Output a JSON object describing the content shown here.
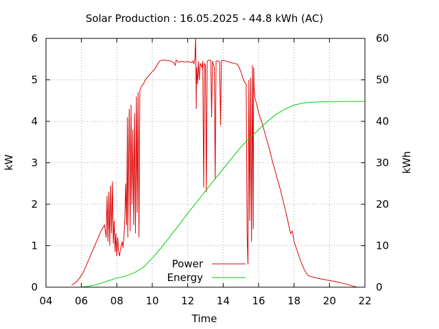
{
  "chart_data": {
    "type": "line",
    "title": "Solar Production : 16.05.2025 - 44.8 kWh (AC)",
    "xlabel": "Time",
    "ylabel": "kW",
    "y2label": "kWh",
    "xlim": [
      4,
      22
    ],
    "ylim": [
      0,
      6
    ],
    "y2lim": [
      0,
      60
    ],
    "x_ticks": [
      4,
      6,
      8,
      10,
      12,
      14,
      16,
      18,
      20,
      22
    ],
    "x_tick_labels": [
      "04",
      "06",
      "08",
      "10",
      "12",
      "14",
      "16",
      "18",
      "20",
      "22"
    ],
    "y_ticks": [
      0,
      1,
      2,
      3,
      4,
      5,
      6
    ],
    "y_tick_labels": [
      "0",
      "1",
      "2",
      "3",
      "4",
      "5",
      "6"
    ],
    "y2_ticks": [
      0,
      10,
      20,
      30,
      40,
      50,
      60
    ],
    "y2_tick_labels": [
      "0",
      "10",
      "20",
      "30",
      "40",
      "50",
      "60"
    ],
    "grid": true,
    "legend_position": "bottom-center",
    "series": [
      {
        "name": "Power",
        "color": "#dd0000",
        "axis": "left",
        "points": [
          [
            5.45,
            0.05
          ],
          [
            5.7,
            0.12
          ],
          [
            5.9,
            0.22
          ],
          [
            6.1,
            0.35
          ],
          [
            6.3,
            0.55
          ],
          [
            6.5,
            0.75
          ],
          [
            6.7,
            0.95
          ],
          [
            6.9,
            1.15
          ],
          [
            7.1,
            1.35
          ],
          [
            7.3,
            1.5
          ],
          [
            7.4,
            1.2
          ],
          [
            7.45,
            2.2
          ],
          [
            7.5,
            1.1
          ],
          [
            7.55,
            2.3
          ],
          [
            7.6,
            1.0
          ],
          [
            7.65,
            2.45
          ],
          [
            7.7,
            1.3
          ],
          [
            7.75,
            2.55
          ],
          [
            7.8,
            1.05
          ],
          [
            7.85,
            1.6
          ],
          [
            7.9,
            0.85
          ],
          [
            7.95,
            1.3
          ],
          [
            8.0,
            0.75
          ],
          [
            8.05,
            1.2
          ],
          [
            8.1,
            0.85
          ],
          [
            8.15,
            0.75
          ],
          [
            8.2,
            0.9
          ],
          [
            8.3,
            1.1
          ],
          [
            8.35,
            0.95
          ],
          [
            8.4,
            1.2
          ],
          [
            8.45,
            1.7
          ],
          [
            8.5,
            2.5
          ],
          [
            8.55,
            1.5
          ],
          [
            8.6,
            4.1
          ],
          [
            8.62,
            1.2
          ],
          [
            8.7,
            4.3
          ],
          [
            8.75,
            1.35
          ],
          [
            8.8,
            4.4
          ],
          [
            8.85,
            2.0
          ],
          [
            8.9,
            3.8
          ],
          [
            8.95,
            1.5
          ],
          [
            9.0,
            4.2
          ],
          [
            9.05,
            1.3
          ],
          [
            9.1,
            4.6
          ],
          [
            9.15,
            1.8
          ],
          [
            9.2,
            4.7
          ],
          [
            9.25,
            1.2
          ],
          [
            9.3,
            4.75
          ],
          [
            9.4,
            4.85
          ],
          [
            9.5,
            4.9
          ],
          [
            9.6,
            5.0
          ],
          [
            9.7,
            5.05
          ],
          [
            9.8,
            5.1
          ],
          [
            9.9,
            5.15
          ],
          [
            10.0,
            5.2
          ],
          [
            10.2,
            5.3
          ],
          [
            10.4,
            5.45
          ],
          [
            10.6,
            5.48
          ],
          [
            10.8,
            5.47
          ],
          [
            11.0,
            5.46
          ],
          [
            11.2,
            5.42
          ],
          [
            11.3,
            5.35
          ],
          [
            11.35,
            5.48
          ],
          [
            11.5,
            5.42
          ],
          [
            11.6,
            5.45
          ],
          [
            11.8,
            5.43
          ],
          [
            12.0,
            5.44
          ],
          [
            12.2,
            5.42
          ],
          [
            12.3,
            5.45
          ],
          [
            12.35,
            5.38
          ],
          [
            12.4,
            5.5
          ],
          [
            12.45,
            6.0
          ],
          [
            12.48,
            4.3
          ],
          [
            12.5,
            5.3
          ],
          [
            12.55,
            4.9
          ],
          [
            12.6,
            5.45
          ],
          [
            12.65,
            5.0
          ],
          [
            12.7,
            5.4
          ],
          [
            12.8,
            5.3
          ],
          [
            12.85,
            5.45
          ],
          [
            12.9,
            2.4
          ],
          [
            12.95,
            5.4
          ],
          [
            13.0,
            5.35
          ],
          [
            13.05,
            2.3
          ],
          [
            13.1,
            5.45
          ],
          [
            13.2,
            5.48
          ],
          [
            13.3,
            5.46
          ],
          [
            13.35,
            4.1
          ],
          [
            13.4,
            5.45
          ],
          [
            13.5,
            5.3
          ],
          [
            13.55,
            2.6
          ],
          [
            13.6,
            5.45
          ],
          [
            13.7,
            5.46
          ],
          [
            13.8,
            5.44
          ],
          [
            13.85,
            3.9
          ],
          [
            13.9,
            5.46
          ],
          [
            14.0,
            5.47
          ],
          [
            14.2,
            5.45
          ],
          [
            14.4,
            5.42
          ],
          [
            14.6,
            5.4
          ],
          [
            14.8,
            5.38
          ],
          [
            14.9,
            5.3
          ],
          [
            15.0,
            5.2
          ],
          [
            15.1,
            5.05
          ],
          [
            15.2,
            4.95
          ],
          [
            15.3,
            4.9
          ],
          [
            15.35,
            1.3
          ],
          [
            15.4,
            0.55
          ],
          [
            15.45,
            5.0
          ],
          [
            15.5,
            1.6
          ],
          [
            15.55,
            5.05
          ],
          [
            15.6,
            1.1
          ],
          [
            15.65,
            5.35
          ],
          [
            15.7,
            1.4
          ],
          [
            15.72,
            5.3
          ],
          [
            15.75,
            4.8
          ],
          [
            15.8,
            4.55
          ],
          [
            15.9,
            4.4
          ],
          [
            16.0,
            4.2
          ],
          [
            16.2,
            3.95
          ],
          [
            16.4,
            3.65
          ],
          [
            16.6,
            3.35
          ],
          [
            16.8,
            3.0
          ],
          [
            17.0,
            2.7
          ],
          [
            17.2,
            2.4
          ],
          [
            17.4,
            2.05
          ],
          [
            17.6,
            1.7
          ],
          [
            17.8,
            1.3
          ],
          [
            17.9,
            1.35
          ],
          [
            18.0,
            1.1
          ],
          [
            18.2,
            0.85
          ],
          [
            18.4,
            0.6
          ],
          [
            18.6,
            0.4
          ],
          [
            18.8,
            0.28
          ],
          [
            19.0,
            0.25
          ],
          [
            19.5,
            0.2
          ],
          [
            20.0,
            0.16
          ],
          [
            20.5,
            0.12
          ],
          [
            21.0,
            0.07
          ],
          [
            21.3,
            0.03
          ],
          [
            21.55,
            0.0
          ]
        ]
      },
      {
        "name": "Energy",
        "color": "#00cc00",
        "axis": "right",
        "points": [
          [
            6.0,
            0.0
          ],
          [
            6.5,
            0.3
          ],
          [
            7.0,
            0.8
          ],
          [
            7.5,
            1.5
          ],
          [
            8.0,
            2.2
          ],
          [
            8.5,
            2.7
          ],
          [
            9.0,
            3.5
          ],
          [
            9.5,
            4.8
          ],
          [
            10.0,
            7.0
          ],
          [
            10.5,
            9.5
          ],
          [
            11.0,
            12.2
          ],
          [
            11.5,
            15.0
          ],
          [
            12.0,
            17.8
          ],
          [
            12.5,
            20.5
          ],
          [
            13.0,
            23.2
          ],
          [
            13.5,
            25.9
          ],
          [
            14.0,
            28.5
          ],
          [
            14.5,
            31.2
          ],
          [
            15.0,
            33.8
          ],
          [
            15.5,
            36.0
          ],
          [
            16.0,
            38.0
          ],
          [
            16.5,
            40.0
          ],
          [
            17.0,
            41.7
          ],
          [
            17.5,
            43.0
          ],
          [
            18.0,
            43.9
          ],
          [
            18.5,
            44.4
          ],
          [
            19.0,
            44.6
          ],
          [
            19.5,
            44.7
          ],
          [
            20.0,
            44.75
          ],
          [
            21.0,
            44.8
          ],
          [
            22.0,
            44.8
          ]
        ]
      }
    ]
  }
}
